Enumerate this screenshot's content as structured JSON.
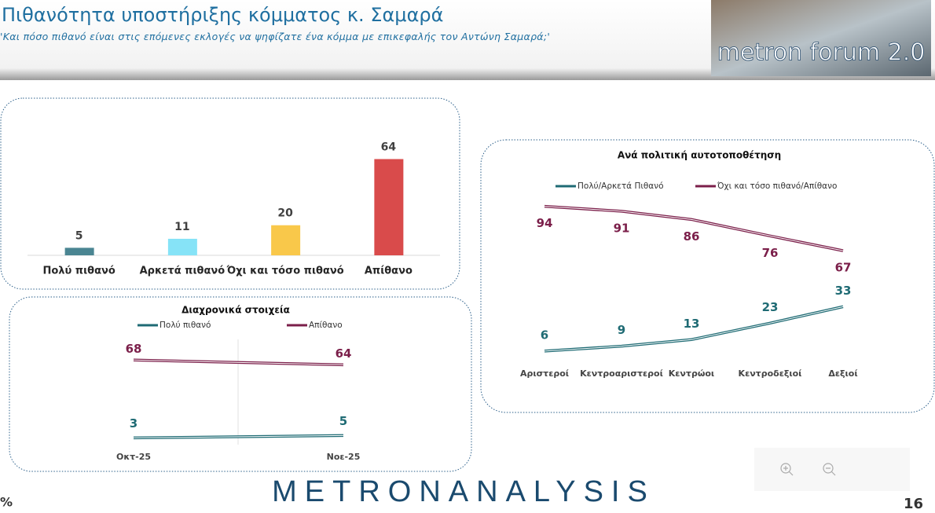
{
  "header": {
    "title": "Πιθανότητα υποστήριξης κόμματος κ. Σαμαρά",
    "subtitle": "'Και πόσο πιθανό είναι στις επόμενες εκλογές να ψηφίζατε ένα κόμμα με επικεφαλής τον Αντώνη Σαμαρά;'",
    "logo": "metron forum 2.0"
  },
  "chart_data": [
    {
      "type": "bar",
      "categories": [
        "Πολύ πιθανό",
        "Αρκετά πιθανό",
        "Όχι και τόσο πιθανό",
        "Απίθανο"
      ],
      "values": [
        5,
        11,
        20,
        64
      ],
      "colors": [
        "#4a8592",
        "#86e3f7",
        "#f9c84a",
        "#d94b4b"
      ],
      "ylim": [
        0,
        70
      ]
    },
    {
      "type": "line",
      "title": "Διαχρονικά στοιχεία",
      "categories": [
        "Οκτ-25",
        "Νοε-25"
      ],
      "series": [
        {
          "name": "Πολύ πιθανό",
          "color": "#1f6b74",
          "values": [
            3,
            5
          ]
        },
        {
          "name": "Απίθανο",
          "color": "#7b1f4a",
          "values": [
            68,
            64
          ]
        }
      ],
      "ylim": [
        0,
        80
      ]
    },
    {
      "type": "line",
      "title": "Ανά πολιτική αυτοτοποθέτηση",
      "categories": [
        "Αριστεροί",
        "Κεντροαριστεροί",
        "Κεντρώοι",
        "Κεντροδεξιοί",
        "Δεξιοί"
      ],
      "series": [
        {
          "name": "Πολύ/Αρκετά Πιθανό",
          "color": "#1f6b74",
          "values": [
            6,
            9,
            13,
            23,
            33
          ]
        },
        {
          "name": "Όχι και τόσο πιθανό/Απίθανο",
          "color": "#7b1f4a",
          "values": [
            94,
            91,
            86,
            76,
            67
          ]
        }
      ],
      "ylim": [
        0,
        100
      ]
    }
  ],
  "footer": {
    "brand": "METRONANALYSIS",
    "unit": "%",
    "page": "16"
  }
}
